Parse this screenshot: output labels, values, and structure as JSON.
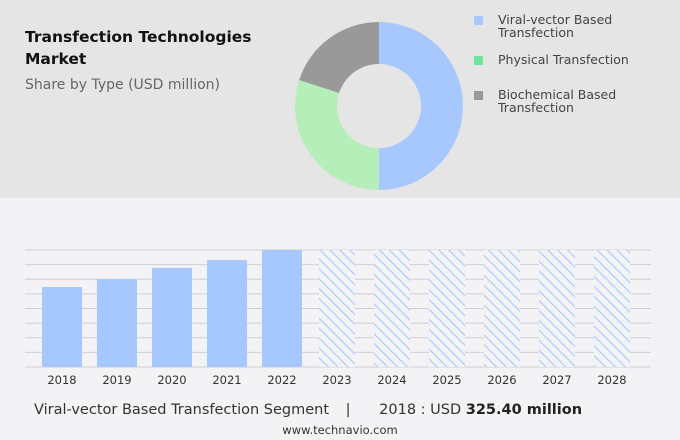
{
  "title": "Transfection Technologies Market",
  "subtitle": "Share by Type (USD million)",
  "chart_data": [
    {
      "type": "pie",
      "variant": "donut",
      "legend_placement": "right",
      "slices": [
        {
          "name": "Viral-vector Based Transfection",
          "value": 50,
          "color": "#a6c8ff"
        },
        {
          "name": "Physical Transfection",
          "value": 30,
          "color": "#b5eeb8",
          "legend_color": "#6ee59a"
        },
        {
          "name": "Biochemical Based Transfection",
          "value": 20,
          "color": "#999999"
        }
      ]
    },
    {
      "type": "bar",
      "categories": [
        "2018",
        "2019",
        "2020",
        "2021",
        "2022",
        "2023",
        "2024",
        "2025",
        "2026",
        "2027",
        "2028"
      ],
      "values": [
        325.4,
        358,
        403,
        435,
        476,
        null,
        null,
        null,
        null,
        null,
        null
      ],
      "forecast_categories": [
        "2023",
        "2024",
        "2025",
        "2026",
        "2027",
        "2028"
      ],
      "forecast_style": "hatched",
      "color": "#a6c8ff",
      "grid": true,
      "ylim": [
        0,
        476
      ]
    }
  ],
  "footer": {
    "segment": "Viral-vector Based Transfection Segment",
    "separator": "|",
    "year_label": "2018 : USD",
    "value": "325.40 million"
  },
  "source": "www.technavio.com"
}
